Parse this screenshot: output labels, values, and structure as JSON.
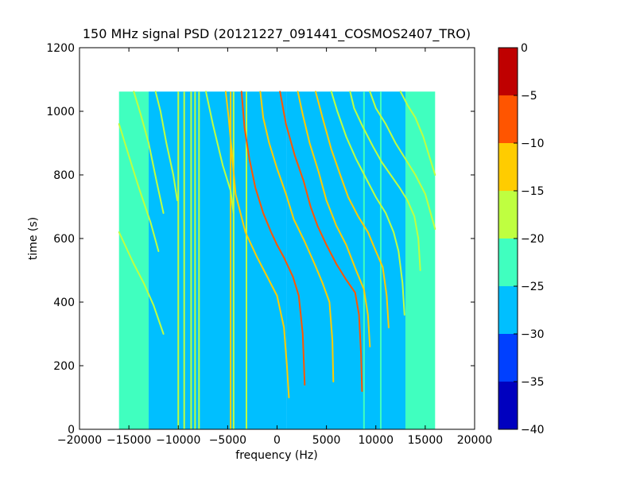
{
  "chart_data": {
    "type": "heatmap",
    "title": "150 MHz signal PSD (20121227_091441_COSMOS2407_TRO)",
    "xlabel": "frequency (Hz)",
    "ylabel": "time (s)",
    "xlim": [
      -20000,
      20000
    ],
    "ylim": [
      0,
      1200
    ],
    "xticks": [
      -20000,
      -15000,
      -10000,
      -5000,
      0,
      5000,
      10000,
      15000,
      20000
    ],
    "yticks": [
      0,
      200,
      400,
      600,
      800,
      1000,
      1200
    ],
    "xtick_labels": [
      "−20000",
      "−15000",
      "−10000",
      "−5000",
      "0",
      "5000",
      "10000",
      "15000",
      "20000"
    ],
    "ytick_labels": [
      "0",
      "200",
      "400",
      "600",
      "800",
      "1000",
      "1200"
    ],
    "data_extent": {
      "freq": [
        -16000,
        16000
      ],
      "time": [
        0,
        1062
      ]
    },
    "colorbar": {
      "range": [
        -40,
        0
      ],
      "ticks": [
        0,
        -5,
        -10,
        -15,
        -20,
        -25,
        -30,
        -35,
        -40
      ],
      "tick_labels": [
        "0",
        "−5",
        "−10",
        "−15",
        "−20",
        "−25",
        "−30",
        "−35",
        "−40"
      ],
      "levels": [
        {
          "from": -40,
          "to": -35,
          "color": "#0000bf"
        },
        {
          "from": -35,
          "to": -30,
          "color": "#0040ff"
        },
        {
          "from": -30,
          "to": -25,
          "color": "#00bfff"
        },
        {
          "from": -25,
          "to": -20,
          "color": "#40ffbf"
        },
        {
          "from": -20,
          "to": -15,
          "color": "#bfff40"
        },
        {
          "from": -15,
          "to": -10,
          "color": "#ffcc00"
        },
        {
          "from": -10,
          "to": -5,
          "color": "#ff5500"
        },
        {
          "from": -5,
          "to": 0,
          "color": "#bf0000"
        }
      ]
    },
    "regions": [
      {
        "f0": -16000,
        "f1": -13000,
        "level": -22.5
      },
      {
        "f0": -13000,
        "f1": 1000,
        "level": -27.5
      },
      {
        "f0": 1000,
        "f1": 13000,
        "level": -27.5
      },
      {
        "f0": 13000,
        "f1": 16000,
        "level": -22.5
      }
    ],
    "vertical_lines": [
      {
        "f": -10000,
        "level": -17.5
      },
      {
        "f": -9400,
        "level": -17.5
      },
      {
        "f": -8700,
        "level": -17.5
      },
      {
        "f": -8300,
        "level": -17.5
      },
      {
        "f": -7900,
        "level": -17.5
      },
      {
        "f": -4700,
        "level": -12.5
      },
      {
        "f": -4400,
        "level": -17.5
      },
      {
        "f": -3100,
        "level": -17.5
      },
      {
        "f": 8800,
        "level": -22.5
      },
      {
        "f": 10500,
        "level": -22.5
      }
    ],
    "traces": [
      {
        "level": -17.5,
        "points": [
          [
            -16000,
            620
          ],
          [
            -14500,
            520
          ],
          [
            -13500,
            460
          ],
          [
            -12500,
            390
          ],
          [
            -11500,
            300
          ]
        ]
      },
      {
        "level": -17.5,
        "points": [
          [
            -16000,
            960
          ],
          [
            -15000,
            860
          ],
          [
            -14000,
            760
          ],
          [
            -12800,
            650
          ],
          [
            -12000,
            560
          ]
        ]
      },
      {
        "level": -17.5,
        "points": [
          [
            -14500,
            1062
          ],
          [
            -13800,
            990
          ],
          [
            -13000,
            900
          ],
          [
            -12200,
            780
          ],
          [
            -11500,
            680
          ]
        ]
      },
      {
        "level": -17.5,
        "points": [
          [
            -12300,
            1062
          ],
          [
            -11800,
            1000
          ],
          [
            -11200,
            900
          ],
          [
            -10500,
            800
          ],
          [
            -10100,
            720
          ]
        ]
      },
      {
        "level": -17.5,
        "points": [
          [
            -7200,
            1062
          ],
          [
            -6500,
            960
          ],
          [
            -5500,
            830
          ],
          [
            -4700,
            750
          ],
          [
            -4400,
            680
          ]
        ]
      },
      {
        "level": -12.5,
        "points": [
          [
            -5200,
            1062
          ],
          [
            -4900,
            980
          ],
          [
            -4600,
            880
          ],
          [
            -4200,
            740
          ],
          [
            -3200,
            620
          ],
          [
            -2000,
            540
          ],
          [
            -1000,
            480
          ],
          [
            0,
            420
          ],
          [
            700,
            320
          ],
          [
            1000,
            200
          ],
          [
            1200,
            100
          ]
        ]
      },
      {
        "level": -7.5,
        "points": [
          [
            -3600,
            1062
          ],
          [
            -3300,
            950
          ],
          [
            -2800,
            850
          ],
          [
            -2200,
            760
          ],
          [
            -1400,
            680
          ],
          [
            -600,
            620
          ],
          [
            0,
            580
          ],
          [
            700,
            540
          ],
          [
            1600,
            480
          ],
          [
            2200,
            420
          ],
          [
            2600,
            300
          ],
          [
            2800,
            140
          ]
        ]
      },
      {
        "level": -12.5,
        "points": [
          [
            -1700,
            1062
          ],
          [
            -1400,
            980
          ],
          [
            -800,
            900
          ],
          [
            0,
            820
          ],
          [
            900,
            740
          ],
          [
            1700,
            660
          ],
          [
            2800,
            590
          ],
          [
            3800,
            520
          ],
          [
            4600,
            460
          ],
          [
            5300,
            400
          ],
          [
            5600,
            280
          ],
          [
            5700,
            150
          ]
        ]
      },
      {
        "level": -7.5,
        "points": [
          [
            300,
            1062
          ],
          [
            900,
            960
          ],
          [
            1800,
            860
          ],
          [
            2700,
            780
          ],
          [
            3400,
            700
          ],
          [
            4100,
            640
          ],
          [
            5000,
            580
          ],
          [
            6000,
            520
          ],
          [
            7000,
            470
          ],
          [
            7900,
            430
          ],
          [
            8300,
            360
          ],
          [
            8500,
            240
          ],
          [
            8600,
            120
          ]
        ]
      },
      {
        "level": -12.5,
        "points": [
          [
            2100,
            1062
          ],
          [
            2600,
            990
          ],
          [
            3300,
            900
          ],
          [
            4200,
            810
          ],
          [
            5000,
            720
          ],
          [
            6000,
            640
          ],
          [
            7000,
            580
          ],
          [
            8000,
            500
          ],
          [
            8800,
            440
          ],
          [
            9200,
            360
          ],
          [
            9400,
            260
          ]
        ]
      },
      {
        "level": -12.5,
        "points": [
          [
            3900,
            1062
          ],
          [
            4600,
            980
          ],
          [
            5500,
            880
          ],
          [
            6400,
            800
          ],
          [
            7200,
            730
          ],
          [
            8200,
            670
          ],
          [
            9200,
            620
          ],
          [
            10000,
            560
          ],
          [
            10700,
            510
          ],
          [
            11100,
            420
          ],
          [
            11300,
            320
          ]
        ]
      },
      {
        "level": -17.5,
        "points": [
          [
            5500,
            1062
          ],
          [
            6100,
            1000
          ],
          [
            7000,
            920
          ],
          [
            8000,
            850
          ],
          [
            9000,
            790
          ],
          [
            10000,
            730
          ],
          [
            11000,
            680
          ],
          [
            11800,
            620
          ],
          [
            12300,
            560
          ],
          [
            12700,
            460
          ],
          [
            12900,
            360
          ]
        ]
      },
      {
        "level": -17.5,
        "points": [
          [
            7400,
            1062
          ],
          [
            7800,
            1010
          ],
          [
            8700,
            950
          ],
          [
            9700,
            890
          ],
          [
            10600,
            840
          ],
          [
            11500,
            800
          ],
          [
            12400,
            760
          ],
          [
            13200,
            720
          ],
          [
            13900,
            670
          ],
          [
            14300,
            600
          ],
          [
            14500,
            500
          ]
        ]
      },
      {
        "level": -17.5,
        "points": [
          [
            9400,
            1062
          ],
          [
            10000,
            1010
          ],
          [
            11000,
            960
          ],
          [
            12000,
            900
          ],
          [
            13000,
            850
          ],
          [
            14000,
            800
          ],
          [
            15000,
            740
          ],
          [
            16000,
            630
          ]
        ]
      },
      {
        "level": -17.5,
        "points": [
          [
            12500,
            1062
          ],
          [
            13200,
            1020
          ],
          [
            14000,
            980
          ],
          [
            14800,
            920
          ],
          [
            15400,
            860
          ],
          [
            16000,
            800
          ]
        ]
      }
    ]
  }
}
